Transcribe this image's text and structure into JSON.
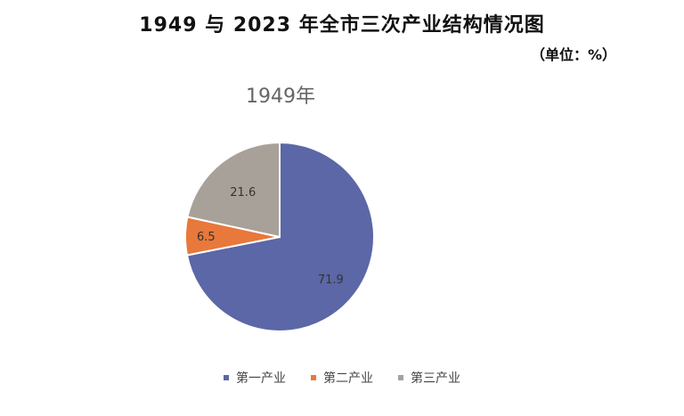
{
  "header": {
    "title": "1949 与 2023 年全市三次产业结构情况图",
    "unit": "（单位：%）"
  },
  "chart_data": {
    "type": "pie",
    "title": "1949年",
    "categories": [
      "第一产业",
      "第二产业",
      "第三产业"
    ],
    "values": [
      71.9,
      6.5,
      21.6
    ],
    "colors": [
      "#5b67a6",
      "#e8783b",
      "#a8a19a"
    ],
    "legend_position": "bottom"
  }
}
